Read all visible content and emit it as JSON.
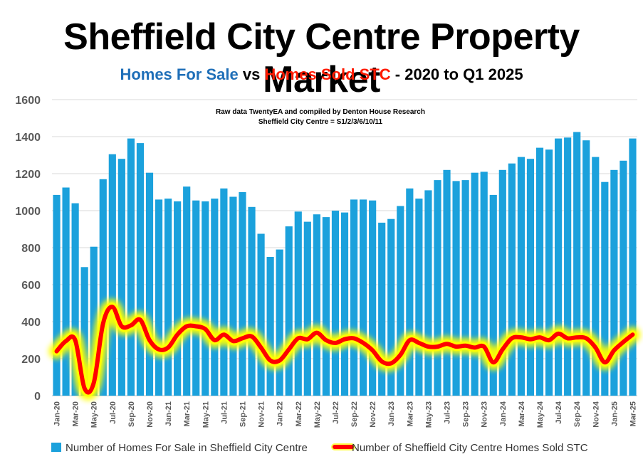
{
  "chart_data": {
    "type": "bar+line",
    "title": "Sheffield City Centre Property Market",
    "subtitle": {
      "part1": "Homes For Sale",
      "part2": " vs ",
      "part3": "Homes Sold STC",
      "part4": " - 2020 to Q1 2025"
    },
    "annotation": {
      "line1": "Raw data TwentyEA and compiled by Denton House Research",
      "line2": "Sheffield City Centre  = S1/2/3/6/10/11"
    },
    "ylim": [
      0,
      1600
    ],
    "yticks": [
      "0",
      "200",
      "400",
      "600",
      "800",
      "1000",
      "1200",
      "1400",
      "1600"
    ],
    "xtick_labels": [
      "Jan-20",
      "Mar-20",
      "May-20",
      "Jul-20",
      "Sep-20",
      "Nov-20",
      "Jan-21",
      "Mar-21",
      "May-21",
      "Jul-21",
      "Sep-21",
      "Nov-21",
      "Jan-22",
      "Mar-22",
      "May-22",
      "Jul-22",
      "Sep-22",
      "Nov-22",
      "Jan-23",
      "Mar-23",
      "May-23",
      "Jul-23",
      "Sep-23",
      "Nov-23",
      "Jan-24",
      "Mar-24",
      "May-24",
      "Jul-24",
      "Sep-24",
      "Nov-24",
      "Jan-25",
      "Mar-25"
    ],
    "grid": true,
    "legend_position": "bottom",
    "colors": {
      "bars": "#1ba1dc",
      "line": "#ff0000",
      "glow": "#ffff00"
    },
    "series": [
      {
        "name": "Number of Homes For Sale in Sheffield City Centre",
        "type": "bar",
        "values": [
          1085,
          1125,
          1040,
          695,
          805,
          1170,
          1305,
          1280,
          1390,
          1365,
          1205,
          1060,
          1065,
          1050,
          1130,
          1055,
          1050,
          1065,
          1120,
          1075,
          1100,
          1020,
          875,
          750,
          790,
          915,
          995,
          940,
          980,
          965,
          1000,
          990,
          1060,
          1060,
          1055,
          935,
          955,
          1025,
          1120,
          1065,
          1110,
          1165,
          1220,
          1160,
          1165,
          1205,
          1210,
          1085,
          1220,
          1255,
          1290,
          1280,
          1340,
          1330,
          1390,
          1395,
          1425,
          1380,
          1290,
          1155,
          1220,
          1270,
          1390
        ]
      },
      {
        "name": "Number of Sheffield City Centre Homes Sold STC",
        "type": "line",
        "values": [
          240,
          295,
          300,
          40,
          70,
          390,
          480,
          375,
          380,
          410,
          300,
          250,
          260,
          330,
          375,
          375,
          360,
          300,
          330,
          295,
          310,
          320,
          260,
          190,
          190,
          250,
          310,
          305,
          340,
          300,
          285,
          305,
          310,
          285,
          245,
          185,
          175,
          220,
          300,
          285,
          265,
          265,
          280,
          265,
          270,
          260,
          265,
          180,
          250,
          310,
          315,
          305,
          315,
          300,
          335,
          310,
          315,
          310,
          260,
          180,
          245,
          290,
          330
        ]
      }
    ]
  }
}
